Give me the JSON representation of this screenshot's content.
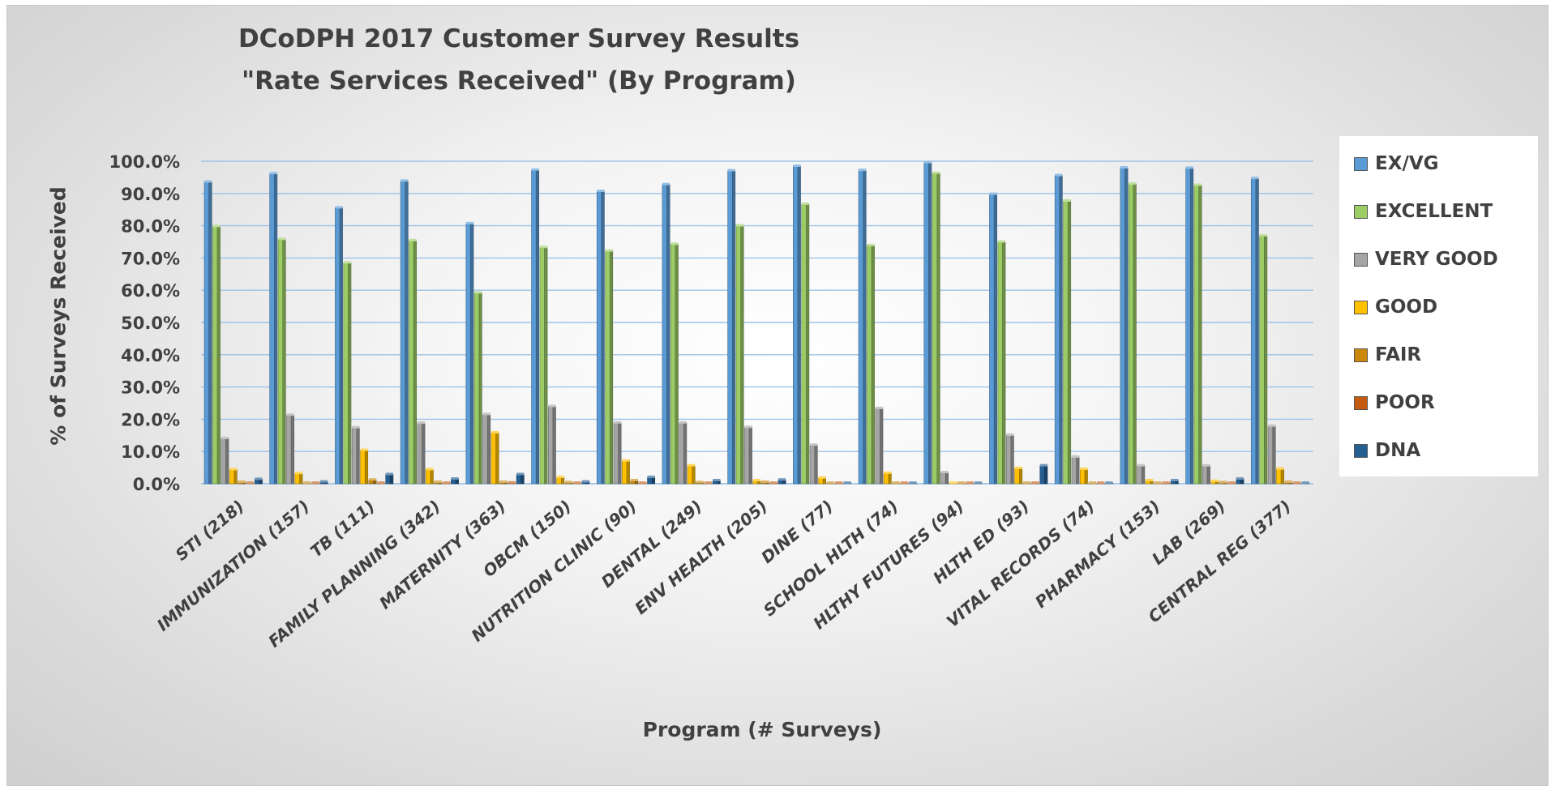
{
  "chart_data": {
    "type": "bar",
    "title": "DCoDPH 2017 Customer Survey Results",
    "subtitle": "\"Rate Services Received\" (By Program)",
    "xlabel": "Program (# Surveys)",
    "ylabel": "% of Surveys Received",
    "ylim": [
      0,
      100
    ],
    "yticks": [
      "0.0%",
      "10.0%",
      "20.0%",
      "30.0%",
      "40.0%",
      "50.0%",
      "60.0%",
      "70.0%",
      "80.0%",
      "90.0%",
      "100.0%"
    ],
    "grid": true,
    "legend_position": "right",
    "categories": [
      "STI (218)",
      "IMMUNIZATION (157)",
      "TB (111)",
      "FAMILY PLANNING (342)",
      "MATERNITY (363)",
      "OBCM (150)",
      "NUTRITION CLINIC (90)",
      "DENTAL (249)",
      "ENV HEALTH (205)",
      "DINE (77)",
      "SCHOOL HLTH (74)",
      "HLTHY FUTURES (94)",
      "HLTH ED (93)",
      "VITAL RECORDS (74)",
      "PHARMACY (153)",
      "LAB (269)",
      "CENTRAL REG (377)"
    ],
    "series": [
      {
        "name": "EX/VG",
        "color": "#5b9bd5",
        "values": [
          93.6,
          96.2,
          85.6,
          93.9,
          80.7,
          97.3,
          90.7,
          92.8,
          97.1,
          98.5,
          97.2,
          99.6,
          89.8,
          95.6,
          98.0,
          97.9,
          94.7
        ]
      },
      {
        "name": "EXCELLENT",
        "color": "#9ccc65",
        "values": [
          79.8,
          75.8,
          68.5,
          75.4,
          59.2,
          73.3,
          72.2,
          74.3,
          80.0,
          86.7,
          73.9,
          96.3,
          75.0,
          87.7,
          93.0,
          92.6,
          76.9
        ]
      },
      {
        "name": "VERY GOOD",
        "color": "#a5a5a5",
        "values": [
          14.1,
          21.3,
          17.4,
          18.8,
          21.5,
          24.0,
          18.9,
          18.9,
          17.5,
          12.0,
          23.4,
          3.5,
          15.1,
          8.3,
          5.6,
          5.6,
          17.9
        ]
      },
      {
        "name": "GOOD",
        "color": "#ffc000",
        "values": [
          4.4,
          3.2,
          10.4,
          4.4,
          15.8,
          2.0,
          7.1,
          5.6,
          1.0,
          1.8,
          3.3,
          0.0,
          4.8,
          4.5,
          1.0,
          0.8,
          4.6
        ]
      },
      {
        "name": "FAIR",
        "color": "#c9870c",
        "values": [
          0.5,
          0.0,
          1.2,
          0.5,
          0.5,
          0.4,
          1.0,
          0.4,
          0.5,
          0.0,
          0.0,
          0.0,
          0.0,
          0.0,
          0.0,
          0.4,
          0.5
        ]
      },
      {
        "name": "POOR",
        "color": "#c55a11",
        "values": [
          0.0,
          0.0,
          0.0,
          0.0,
          0.3,
          0.0,
          0.0,
          0.0,
          0.0,
          0.0,
          0.0,
          0.0,
          0.0,
          0.0,
          0.0,
          0.0,
          0.2
        ]
      },
      {
        "name": "DNA",
        "color": "#255e91",
        "values": [
          1.4,
          0.6,
          2.9,
          1.5,
          2.9,
          0.6,
          2.0,
          1.0,
          1.2,
          0.0,
          0.0,
          0.0,
          5.6,
          0.0,
          1.0,
          1.5,
          0.0
        ]
      }
    ]
  }
}
